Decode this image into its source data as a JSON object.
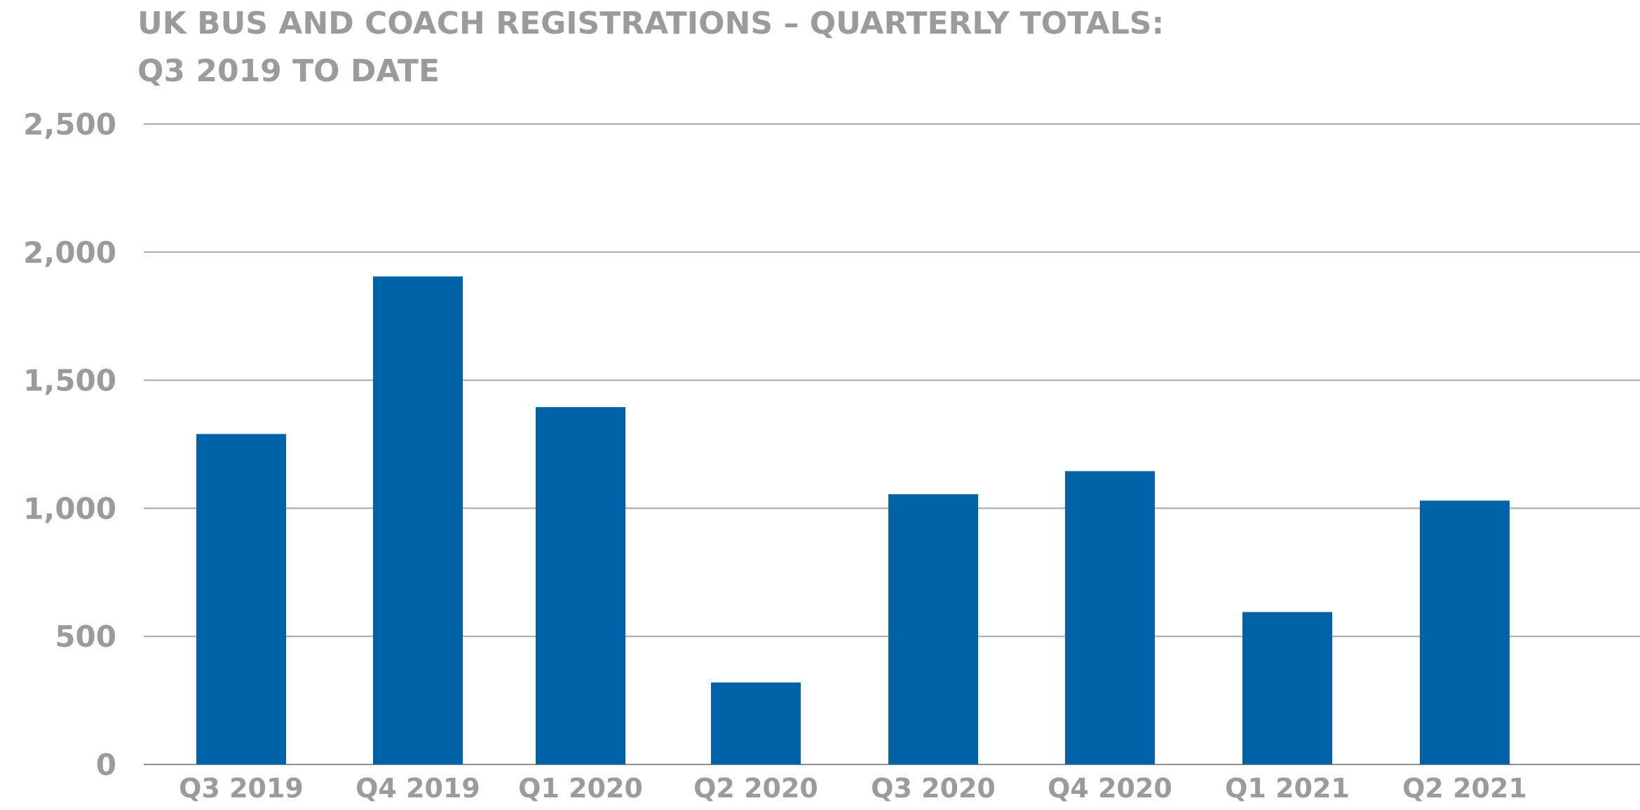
{
  "chart_data": {
    "type": "bar",
    "title_lines": [
      "UK BUS AND COACH REGISTRATIONS – QUARTERLY TOTALS:",
      "Q3 2019 TO DATE"
    ],
    "categories": [
      "Q3 2019",
      "Q4 2019",
      "Q1 2020",
      "Q2 2020",
      "Q3 2020",
      "Q4 2020",
      "Q1 2021",
      "Q2 2021"
    ],
    "values": [
      1290,
      1905,
      1395,
      320,
      1055,
      1145,
      595,
      1030
    ],
    "ylim": [
      0,
      2500
    ],
    "yticks": [
      0,
      500,
      1000,
      1500,
      2000,
      2500
    ],
    "ytick_labels": [
      "0",
      "500",
      "1,000",
      "1,500",
      "2,000",
      "2,500"
    ],
    "grid": true,
    "legend": "none",
    "bar_color": "#0063a8",
    "text_color": "#9b9b9b",
    "grid_color": "#a8a8a8"
  }
}
